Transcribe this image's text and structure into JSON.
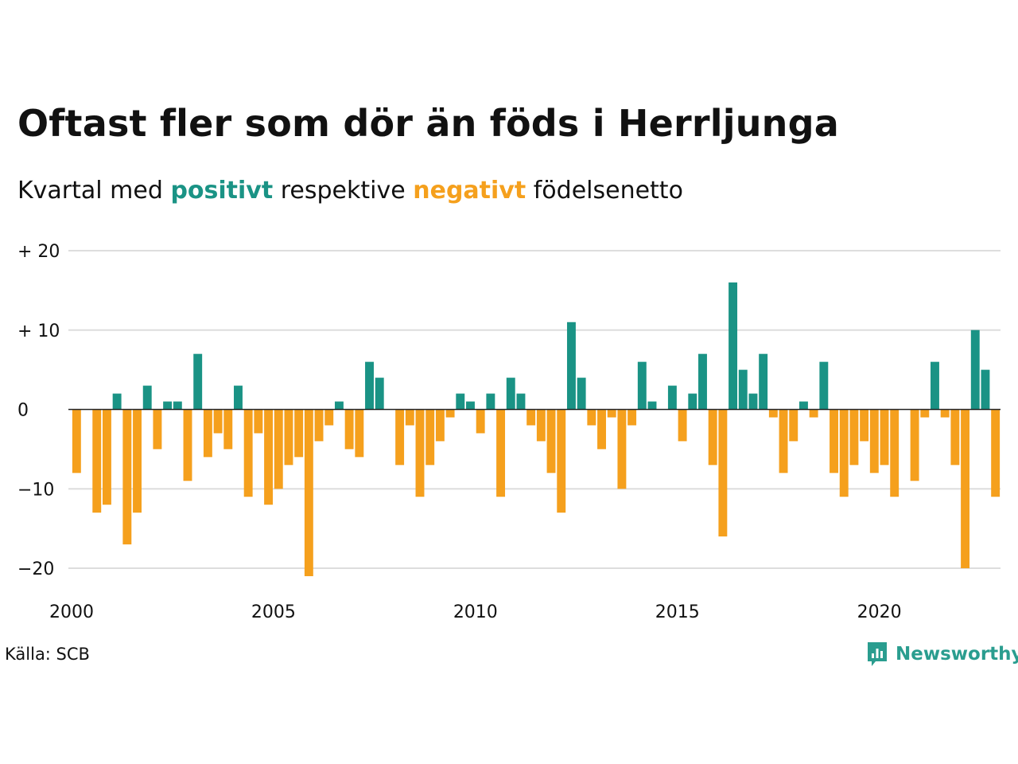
{
  "title": "Oftast fler som dör än föds i Herrljunga",
  "subtitle": {
    "prefix": "Kvartal med",
    "positive_word": "positivt",
    "middle": "respektive",
    "negative_word": "negativt",
    "suffix": "födelsenetto"
  },
  "colors": {
    "positive": "#1a9385",
    "negative": "#f5a01d",
    "grid": "#dddddd",
    "baseline": "#222222"
  },
  "source": "Källa: SCB",
  "brand": {
    "name": "Newsworthy",
    "icon": "newsworthy-logo-icon",
    "color": "#2a9d8f"
  },
  "chart_data": {
    "type": "bar",
    "xlim": [
      2000,
      2023
    ],
    "ylim": [
      -20,
      20
    ],
    "grid": true,
    "y_ticks": [
      {
        "value": 20,
        "label": "+ 20"
      },
      {
        "value": 10,
        "label": "+ 10"
      },
      {
        "value": 0,
        "label": "0"
      },
      {
        "value": -10,
        "label": "−10"
      },
      {
        "value": -20,
        "label": "−20"
      }
    ],
    "x_ticks": [
      {
        "value": 2000,
        "label": "2000"
      },
      {
        "value": 2005,
        "label": "2005"
      },
      {
        "value": 2010,
        "label": "2010"
      },
      {
        "value": 2015,
        "label": "2015"
      },
      {
        "value": 2020,
        "label": "2020"
      }
    ],
    "start_year": 2000,
    "quarters_per_year": 4,
    "values": [
      -8,
      0,
      -13,
      -12,
      2,
      -17,
      -13,
      3,
      -5,
      1,
      1,
      -9,
      7,
      -6,
      -3,
      -5,
      3,
      -11,
      -3,
      -12,
      -10,
      -7,
      -6,
      -21,
      -4,
      -2,
      1,
      -5,
      -6,
      6,
      4,
      0,
      -7,
      -2,
      -11,
      -7,
      -4,
      -1,
      2,
      1,
      -3,
      2,
      -11,
      4,
      2,
      -2,
      -4,
      -8,
      -13,
      11,
      4,
      -2,
      -5,
      -1,
      -10,
      -2,
      6,
      1,
      0,
      3,
      -4,
      2,
      7,
      -7,
      -16,
      16,
      5,
      2,
      7,
      -1,
      -8,
      -4,
      1,
      -1,
      6,
      -8,
      -11,
      -7,
      -4,
      -8,
      -7,
      -11,
      0,
      -9,
      -1,
      6,
      -1,
      -7,
      -20,
      10,
      5,
      -11
    ]
  }
}
